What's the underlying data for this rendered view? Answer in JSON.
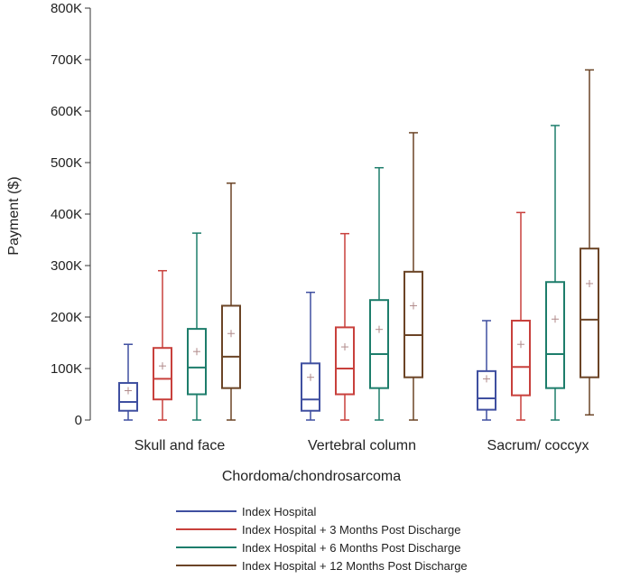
{
  "chart_data": {
    "type": "boxplot",
    "title": "",
    "xlabel": "Chordoma/chondrosarcoma",
    "ylabel": "Payment ($)",
    "ylim": [
      0,
      800000
    ],
    "yticks": [
      0,
      100000,
      200000,
      300000,
      400000,
      500000,
      600000,
      700000,
      800000
    ],
    "ytick_labels": [
      "0",
      "100K",
      "200K",
      "300K",
      "400K",
      "500K",
      "600K",
      "700K",
      "800K"
    ],
    "categories": [
      "Skull and face",
      "Vertebral column",
      "Sacrum/ coccyx"
    ],
    "series": [
      {
        "name": "Index Hospital",
        "color": "#3f4fa0",
        "boxes": [
          {
            "min": 0,
            "q1": 18000,
            "median": 35000,
            "q3": 72000,
            "max": 147000,
            "mean": 57000
          },
          {
            "min": 0,
            "q1": 18000,
            "median": 40000,
            "q3": 110000,
            "max": 248000,
            "mean": 83000
          },
          {
            "min": 0,
            "q1": 20000,
            "median": 42000,
            "q3": 95000,
            "max": 193000,
            "mean": 80000
          }
        ]
      },
      {
        "name": "Index Hospital + 3 Months Post Discharge",
        "color": "#c8403c",
        "boxes": [
          {
            "min": 0,
            "q1": 40000,
            "median": 80000,
            "q3": 140000,
            "max": 290000,
            "mean": 105000
          },
          {
            "min": 0,
            "q1": 50000,
            "median": 100000,
            "q3": 180000,
            "max": 362000,
            "mean": 142000
          },
          {
            "min": 0,
            "q1": 48000,
            "median": 103000,
            "q3": 193000,
            "max": 403000,
            "mean": 147000
          }
        ]
      },
      {
        "name": "Index Hospital + 6 Months Post Discharge",
        "color": "#1d7d6b",
        "boxes": [
          {
            "min": 0,
            "q1": 50000,
            "median": 102000,
            "q3": 177000,
            "max": 363000,
            "mean": 133000
          },
          {
            "min": 0,
            "q1": 62000,
            "median": 128000,
            "q3": 233000,
            "max": 490000,
            "mean": 176000
          },
          {
            "min": 0,
            "q1": 62000,
            "median": 128000,
            "q3": 268000,
            "max": 572000,
            "mean": 196000
          }
        ]
      },
      {
        "name": "Index Hospital + 12 Months Post Discharge",
        "color": "#6b4426",
        "boxes": [
          {
            "min": 0,
            "q1": 62000,
            "median": 123000,
            "q3": 222000,
            "max": 460000,
            "mean": 168000
          },
          {
            "min": 0,
            "q1": 83000,
            "median": 165000,
            "q3": 288000,
            "max": 558000,
            "mean": 222000
          },
          {
            "min": 10000,
            "q1": 83000,
            "median": 195000,
            "q3": 333000,
            "max": 680000,
            "mean": 265000
          }
        ]
      }
    ]
  }
}
